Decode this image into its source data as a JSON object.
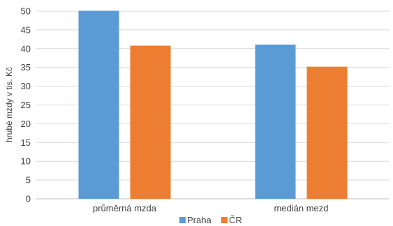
{
  "chart_data": {
    "type": "bar",
    "categories": [
      "průměrná mzda",
      "medián mezd"
    ],
    "series": [
      {
        "name": "Praha",
        "values": [
          50.1,
          41.1
        ],
        "color": "#5b9bd5"
      },
      {
        "name": "ČR",
        "values": [
          40.8,
          35.2
        ],
        "color": "#ed7d31"
      }
    ],
    "ylabel": "hrubé mzdy  v tis. Kč",
    "xlabel": "",
    "ylim": [
      0,
      50
    ],
    "yticks": [
      0,
      5,
      10,
      15,
      20,
      25,
      30,
      35,
      40,
      45,
      50
    ],
    "grid": true,
    "legend_position": "bottom"
  }
}
